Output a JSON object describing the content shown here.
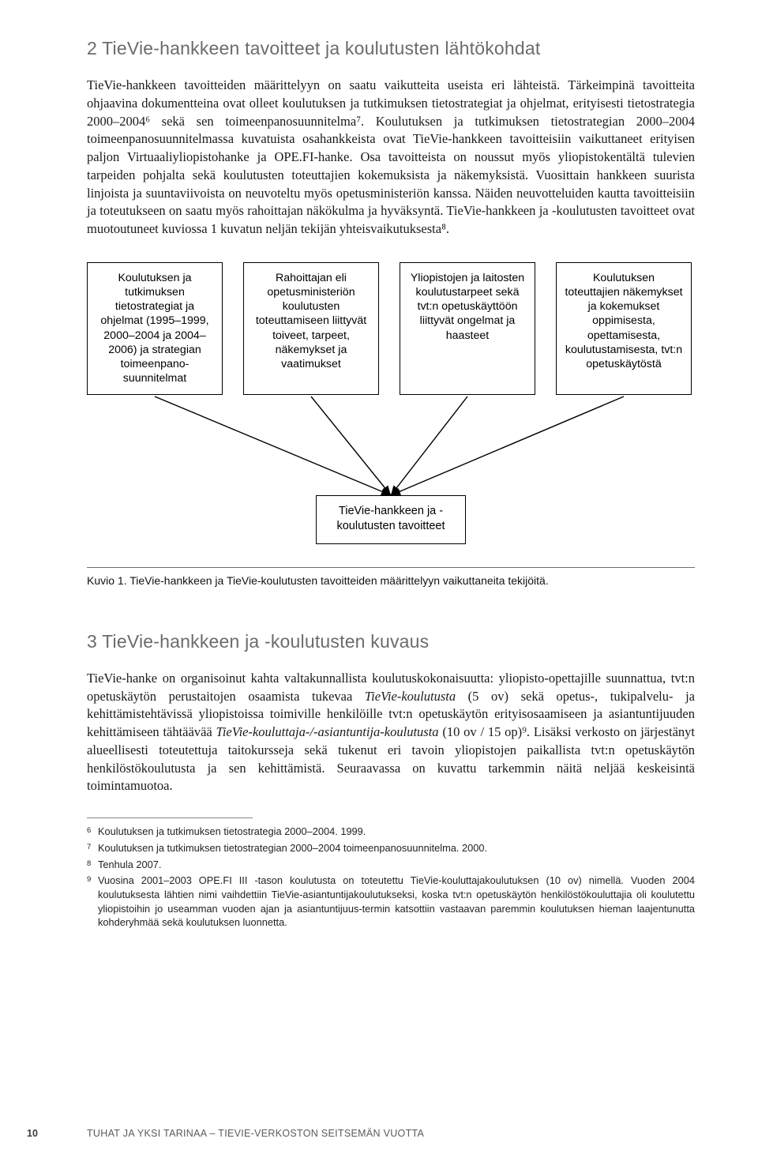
{
  "section2": {
    "title": "2 TieVie-hankkeen tavoitteet ja koulutusten lähtökohdat",
    "para": "TieVie-hankkeen tavoitteiden määrittelyyn on saatu vaikutteita useista eri lähteistä. Tärkeimpinä tavoitteita ohjaavina dokumentteina ovat olleet koulutuksen ja tutkimuksen tietostrategiat ja ohjelmat, erityisesti tietostrategia 2000–2004⁶ sekä sen toimeenpanosuunnitelma⁷. Koulutuksen ja tutkimuksen tietostrategian 2000–2004 toimeenpanosuunnitelmassa kuvatuista osahankkeista ovat TieVie-hankkeen tavoitteisiin vaikuttaneet erityisen paljon Virtuaaliyliopistohanke ja OPE.FI-hanke. Osa tavoitteista on noussut myös yliopistokentältä tulevien tarpeiden pohjalta sekä koulutusten toteuttajien kokemuksista ja näkemyksistä. Vuosittain hankkeen suurista linjoista ja suuntaviivoista on neuvoteltu myös opetusministeriön kanssa. Näiden neuvotteluiden kautta tavoitteisiin ja toteutukseen on saatu myös rahoittajan näkökulma ja hyväksyntä. TieVie-hankkeen ja -koulutusten tavoitteet ovat muotoutuneet kuviossa 1 kuvatun neljän tekijän yhteisvaikutuksesta⁸."
  },
  "diagram": {
    "boxes": [
      "Koulutuksen ja tutkimuksen tietostrategiat ja ohjelmat (1995–1999, 2000–2004 ja 2004–2006) ja strategian toimeenpano-suunnitelmat",
      "Rahoittajan eli opetusministeriön koulutusten toteuttamiseen liittyvät toiveet, tarpeet, näkemykset ja vaatimukset",
      "Yliopistojen ja laitosten koulutustarpeet sekä tvt:n opetuskäyttöön liittyvät ongelmat ja haasteet",
      "Koulutuksen toteuttajien näkemykset ja kokemukset oppimisesta, opettamisesta, koulutustamisesta, tvt:n opetuskäytöstä"
    ],
    "bottom": "TieVie-hankkeen ja -koulutusten tavoitteet",
    "box_lefts": [
      0,
      198,
      396,
      594
    ],
    "connector_stroke": "#000000",
    "connector_width": 1.4
  },
  "caption": {
    "label": "Kuvio 1.",
    "text": "TieVie-hankkeen ja TieVie-koulutusten tavoitteiden määrittelyyn vaikuttaneita tekijöitä."
  },
  "section3": {
    "title": "3 TieVie-hankkeen ja -koulutusten kuvaus",
    "para_parts": [
      {
        "t": "TieVie-hanke on organisoinut kahta valtakunnallista koulutuskokonaisuutta: yliopisto-opettajille suunnattua, tvt:n opetuskäytön perustaitojen osaamista tukevaa ",
        "i": false
      },
      {
        "t": "TieVie-koulutusta",
        "i": true
      },
      {
        "t": " (5 ov) sekä opetus-, tukipalvelu- ja kehittämistehtävissä yliopistoissa toimiville henkilöille tvt:n opetuskäytön erityisosaamiseen ja asiantuntijuuden kehittämiseen tähtäävää ",
        "i": false
      },
      {
        "t": "TieVie-kouluttaja-/-asiantuntija-koulutusta",
        "i": true
      },
      {
        "t": " (10 ov / 15 op)⁹. Lisäksi verkosto on järjestänyt alueellisesti toteutettuja taitokursseja sekä tukenut eri tavoin yliopistojen paikallista tvt:n opetuskäytön henkilöstökoulutusta ja sen kehittämistä. Seuraavassa on kuvattu tarkemmin näitä neljää keskeisintä toimintamuotoa.",
        "i": false
      }
    ]
  },
  "footnotes": [
    {
      "n": "6",
      "t": "Koulutuksen ja tutkimuksen tietostrategia 2000–2004. 1999."
    },
    {
      "n": "7",
      "t": "Koulutuksen ja tutkimuksen tietostrategian 2000–2004 toimeenpanosuunnitelma. 2000."
    },
    {
      "n": "8",
      "t": "Tenhula 2007."
    },
    {
      "n": "9",
      "t": "Vuosina 2001–2003 OPE.FI III -tason koulutusta on toteutettu TieVie-kouluttajakoulutuksen (10 ov) nimellä. Vuoden 2004 koulutuksesta lähtien nimi vaihdettiin TieVie-asiantuntijakoulutukseksi, koska tvt:n opetuskäytön henkilöstökouluttajia oli koulutettu yliopistoihin jo useamman vuoden ajan ja asiantuntijuus-termin katsottiin vastaavan paremmin koulutuksen hieman laajentunutta kohderyhmää sekä koulutuksen luonnetta."
    }
  ],
  "runner": {
    "page": "10",
    "title": "TUHAT JA YKSI TARINAA – TIEVIE-VERKOSTON SEITSEMÄN VUOTTA"
  }
}
